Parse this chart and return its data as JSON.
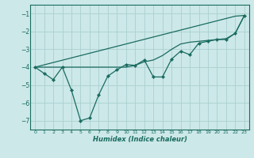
{
  "xlabel": "Humidex (Indice chaleur)",
  "bg_color": "#cce8e8",
  "grid_color": "#aacfcf",
  "line_color": "#1a6b60",
  "x_data": [
    0,
    1,
    2,
    3,
    4,
    5,
    6,
    7,
    8,
    9,
    10,
    11,
    12,
    13,
    14,
    15,
    16,
    17,
    18,
    19,
    20,
    21,
    22,
    23
  ],
  "y_main": [
    -4.0,
    -4.35,
    -4.7,
    -4.0,
    -5.3,
    -7.0,
    -6.85,
    -5.55,
    -4.5,
    -4.15,
    -3.85,
    -3.9,
    -3.6,
    -4.55,
    -4.55,
    -3.55,
    -3.1,
    -3.3,
    -2.65,
    -2.55,
    -2.45,
    -2.45,
    -2.1,
    -1.1
  ],
  "y_line1": [
    -4.0,
    -3.87,
    -3.74,
    -3.61,
    -3.48,
    -3.35,
    -3.22,
    -3.09,
    -2.96,
    -2.83,
    -2.7,
    -2.57,
    -2.44,
    -2.31,
    -2.18,
    -2.05,
    -1.92,
    -1.79,
    -1.66,
    -1.53,
    -1.4,
    -1.27,
    -1.14,
    -1.1
  ],
  "y_line2": [
    -4.0,
    -4.0,
    -4.0,
    -4.0,
    -4.0,
    -4.0,
    -4.0,
    -4.0,
    -4.0,
    -4.0,
    -4.0,
    -3.9,
    -3.7,
    -3.6,
    -3.35,
    -3.0,
    -2.7,
    -2.6,
    -2.55,
    -2.5,
    -2.45,
    -2.4,
    -2.1,
    -1.1
  ],
  "ylim": [
    -7.5,
    -0.5
  ],
  "xlim": [
    -0.5,
    23.5
  ],
  "yticks": [
    -7,
    -6,
    -5,
    -4,
    -3,
    -2,
    -1
  ],
  "xticks": [
    0,
    1,
    2,
    3,
    4,
    5,
    6,
    7,
    8,
    9,
    10,
    11,
    12,
    13,
    14,
    15,
    16,
    17,
    18,
    19,
    20,
    21,
    22,
    23
  ]
}
